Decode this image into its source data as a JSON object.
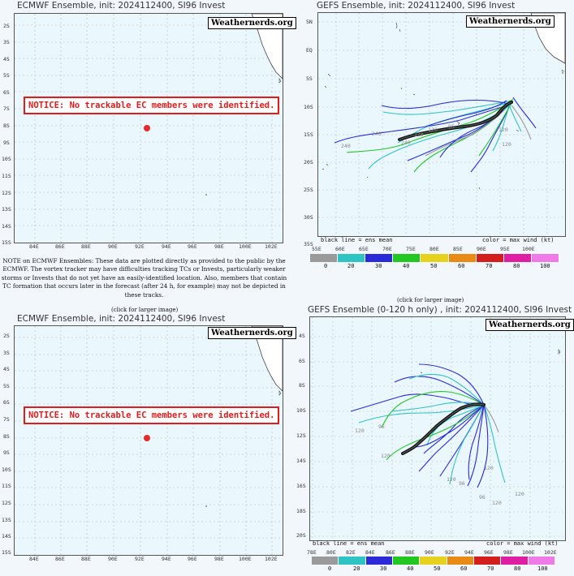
{
  "panels": {
    "ecmwf_top": {
      "title": "ECMWF Ensemble, init: 2024112400, SI96 Invest",
      "watermark": "Weathernerds.org",
      "notice": "NOTICE: No trackable EC members were identified.",
      "lat_labels": [
        "2S",
        "3S",
        "4S",
        "5S",
        "6S",
        "7S",
        "8S",
        "9S",
        "10S",
        "11S",
        "12S",
        "13S",
        "14S",
        "15S"
      ],
      "lon_labels": [
        "84E",
        "86E",
        "88E",
        "90E",
        "92E",
        "94E",
        "96E",
        "98E",
        "100E",
        "102E"
      ]
    },
    "gefs_top": {
      "title": "GEFS Ensemble, init: 2024112400, SI96 Invest",
      "watermark": "Weathernerds.org",
      "lat_labels": [
        "5N",
        "EQ",
        "5S",
        "10S",
        "15S",
        "20S",
        "25S",
        "30S",
        "35S"
      ],
      "lon_labels": [
        "55E",
        "60E",
        "65E",
        "70E",
        "75E",
        "80E",
        "85E",
        "90E",
        "95E",
        "100E"
      ],
      "footer_left": "black line = ens mean",
      "footer_right": "color = max wind (kt)",
      "track_labels": [
        "240",
        "240",
        "240",
        "120",
        "120",
        "96",
        "120",
        "120"
      ]
    },
    "ecmwf_bottom": {
      "title": "ECMWF Ensemble, init: 2024112400, SI96 Invest",
      "watermark": "Weathernerds.org",
      "notice": "NOTICE: No trackable EC members were identified.",
      "lat_labels": [
        "2S",
        "3S",
        "4S",
        "5S",
        "6S",
        "7S",
        "8S",
        "9S",
        "10S",
        "11S",
        "12S",
        "13S",
        "14S",
        "15S"
      ],
      "lon_labels": [
        "84E",
        "86E",
        "88E",
        "90E",
        "92E",
        "94E",
        "96E",
        "98E",
        "100E",
        "102E"
      ]
    },
    "gefs_bottom": {
      "title": "GEFS Ensemble (0-120 h only) , init: 2024112400, SI96 Invest",
      "watermark": "Weathernerds.org",
      "lat_labels": [
        "4S",
        "6S",
        "8S",
        "10S",
        "12S",
        "14S",
        "16S",
        "18S",
        "20S"
      ],
      "lon_labels": [
        "78E",
        "80E",
        "82E",
        "84E",
        "86E",
        "88E",
        "90E",
        "92E",
        "94E",
        "96E",
        "98E",
        "100E",
        "102E"
      ],
      "footer_left": "black line = ens mean",
      "footer_right": "color = max wind (kt)",
      "track_labels": [
        "120",
        "96",
        "120",
        "120",
        "96",
        "120",
        "96",
        "120",
        "120"
      ]
    }
  },
  "colorbar": {
    "values": [
      "0",
      "20",
      "30",
      "40",
      "50",
      "60",
      "70",
      "80",
      "100"
    ],
    "colors": [
      "#9a9a9a",
      "#2ec4c4",
      "#2a2ad8",
      "#22c722",
      "#e6d21e",
      "#e88a14",
      "#d41e1e",
      "#e01ea3",
      "#f07be8"
    ]
  },
  "note": "NOTE on ECMWF Ensembles: These data are plotted directly as provided to the public by the ECMWF. The vortex tracker may have difficulties tracking TCs or Invests, particularly weaker storms or Invests that do not yet have an easily-identified location. Also, members that contain TC formation that occurs later in the forecast (after 24 h, for example) may not be depicted in these tracks.",
  "click_labels": {
    "left": "(click for larger image)",
    "right": "(click for larger image)"
  }
}
